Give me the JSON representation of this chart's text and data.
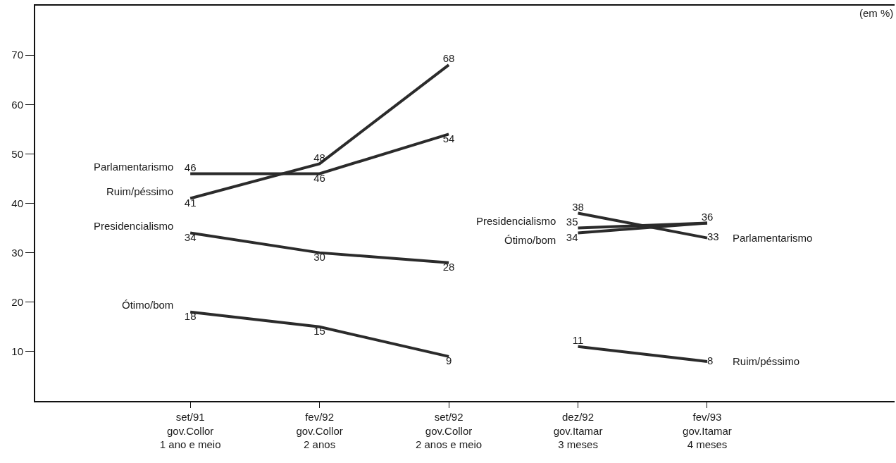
{
  "chart_data": {
    "type": "line",
    "categories": [
      "set/91\ngov.Collor\n1 ano e meio",
      "fev/92\ngov.Collor\n2 anos",
      "set/92\ngov.Collor\n2 anos e meio",
      "dez/92\ngov.Itamar\n3 meses",
      "fev/93\ngov.Itamar\n4 meses"
    ],
    "series": [
      {
        "name": "Parlamentarismo",
        "color": "#2b2b2b",
        "values": [
          46,
          46,
          54,
          null,
          null
        ]
      },
      {
        "name": "Ruim/péssimo",
        "color": "#2b2b2b",
        "values": [
          41,
          48,
          68,
          null,
          null
        ]
      },
      {
        "name": "Presidencialismo",
        "color": "#2b2b2b",
        "values": [
          34,
          30,
          28,
          null,
          null
        ]
      },
      {
        "name": "Ótimo/bom",
        "color": "#2b2b2b",
        "values": [
          18,
          15,
          9,
          null,
          null
        ]
      },
      {
        "name": "Presidencialismo",
        "color": "#2b2b2b",
        "values": [
          null,
          null,
          null,
          35,
          36
        ],
        "value_labels": [
          null,
          null,
          null,
          "35",
          "36"
        ]
      },
      {
        "name": "Ótimo/bom",
        "color": "#2b2b2b",
        "values": [
          null,
          null,
          null,
          34,
          36
        ],
        "value_labels": [
          null,
          null,
          null,
          "34",
          null
        ]
      },
      {
        "name": "Parlamentarismo",
        "color": "#2b2b2b",
        "values": [
          null,
          null,
          null,
          38,
          33
        ]
      },
      {
        "name": "Ruim/péssimo",
        "color": "#2b2b2b",
        "values": [
          null,
          null,
          null,
          11,
          8
        ]
      }
    ],
    "ylim": [
      0,
      80
    ],
    "yticks": [
      10,
      20,
      30,
      40,
      50,
      60,
      70
    ],
    "data_labels": true,
    "grid": false,
    "legend": false,
    "marker": "none",
    "line_style": "solid",
    "annotations": [
      "(em %)"
    ]
  }
}
